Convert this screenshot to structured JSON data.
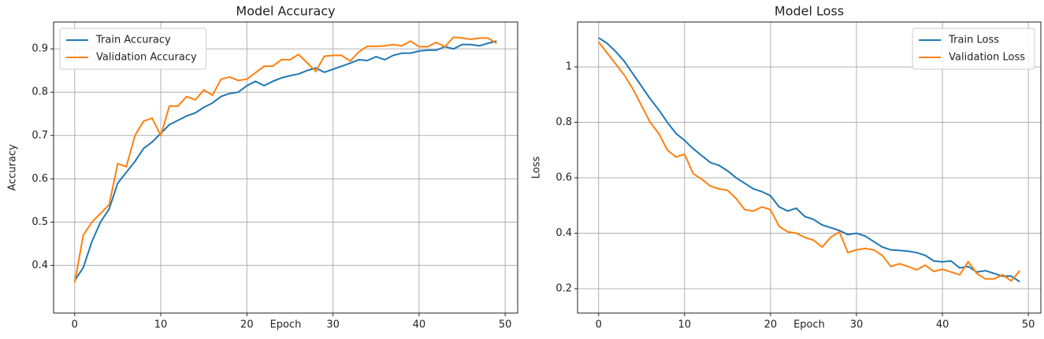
{
  "chart_data": [
    {
      "type": "line",
      "title": "Model Accuracy",
      "x_label": "Epoch",
      "y_label": "Accuracy",
      "x": [
        0,
        1,
        2,
        3,
        4,
        5,
        6,
        7,
        8,
        9,
        10,
        11,
        12,
        13,
        14,
        15,
        16,
        17,
        18,
        19,
        20,
        21,
        22,
        23,
        24,
        25,
        26,
        27,
        28,
        29,
        30,
        31,
        32,
        33,
        34,
        35,
        36,
        37,
        38,
        39,
        40,
        41,
        42,
        43,
        44,
        45,
        46,
        47,
        48,
        49
      ],
      "xlim": [
        -2.45,
        51.45
      ],
      "xticks": [
        0,
        10,
        20,
        30,
        40,
        50
      ],
      "ylim": [
        0.29,
        0.962
      ],
      "yticks": [
        0.4,
        0.5,
        0.6,
        0.7,
        0.8,
        0.9
      ],
      "grid": true,
      "legend": "upper left",
      "series": [
        {
          "name": "Train Accuracy",
          "color": "#1f77b4",
          "values": [
            0.365,
            0.395,
            0.455,
            0.5,
            0.53,
            0.59,
            0.615,
            0.64,
            0.67,
            0.685,
            0.705,
            0.725,
            0.735,
            0.745,
            0.752,
            0.765,
            0.775,
            0.79,
            0.797,
            0.8,
            0.815,
            0.825,
            0.815,
            0.825,
            0.833,
            0.838,
            0.842,
            0.85,
            0.856,
            0.846,
            0.853,
            0.86,
            0.867,
            0.875,
            0.873,
            0.882,
            0.875,
            0.885,
            0.89,
            0.89,
            0.895,
            0.897,
            0.897,
            0.905,
            0.9,
            0.91,
            0.91,
            0.907,
            0.913,
            0.918
          ]
        },
        {
          "name": "Validation Accuracy",
          "color": "#ff7f0e",
          "values": [
            0.36,
            0.47,
            0.5,
            0.52,
            0.54,
            0.635,
            0.628,
            0.7,
            0.733,
            0.74,
            0.7,
            0.768,
            0.768,
            0.79,
            0.782,
            0.805,
            0.793,
            0.83,
            0.835,
            0.827,
            0.83,
            0.845,
            0.86,
            0.86,
            0.875,
            0.875,
            0.887,
            0.868,
            0.848,
            0.883,
            0.885,
            0.885,
            0.872,
            0.893,
            0.906,
            0.906,
            0.907,
            0.91,
            0.907,
            0.918,
            0.905,
            0.905,
            0.915,
            0.905,
            0.927,
            0.925,
            0.922,
            0.925,
            0.925,
            0.913
          ]
        }
      ]
    },
    {
      "type": "line",
      "title": "Model Loss",
      "x_label": "Epoch",
      "y_label": "Loss",
      "x": [
        0,
        1,
        2,
        3,
        4,
        5,
        6,
        7,
        8,
        9,
        10,
        11,
        12,
        13,
        14,
        15,
        16,
        17,
        18,
        19,
        20,
        21,
        22,
        23,
        24,
        25,
        26,
        27,
        28,
        29,
        30,
        31,
        32,
        33,
        34,
        35,
        36,
        37,
        38,
        39,
        40,
        41,
        42,
        43,
        44,
        45,
        46,
        47,
        48,
        49
      ],
      "xlim": [
        -2.45,
        51.45
      ],
      "xticks": [
        0,
        10,
        20,
        30,
        40,
        50
      ],
      "ylim": [
        0.112,
        1.162
      ],
      "yticks": [
        0.2,
        0.4,
        0.6,
        0.8,
        1.0
      ],
      "grid": true,
      "legend": "upper right",
      "series": [
        {
          "name": "Train Loss",
          "color": "#1f77b4",
          "values": [
            1.105,
            1.085,
            1.055,
            1.02,
            0.975,
            0.93,
            0.885,
            0.845,
            0.8,
            0.76,
            0.735,
            0.705,
            0.68,
            0.655,
            0.645,
            0.625,
            0.6,
            0.58,
            0.56,
            0.55,
            0.535,
            0.495,
            0.48,
            0.49,
            0.46,
            0.45,
            0.43,
            0.42,
            0.41,
            0.395,
            0.4,
            0.39,
            0.37,
            0.35,
            0.34,
            0.338,
            0.335,
            0.33,
            0.32,
            0.3,
            0.297,
            0.3,
            0.275,
            0.28,
            0.26,
            0.265,
            0.255,
            0.245,
            0.245,
            0.225
          ]
        },
        {
          "name": "Validation Loss",
          "color": "#ff7f0e",
          "values": [
            1.09,
            1.05,
            1.01,
            0.97,
            0.92,
            0.86,
            0.8,
            0.76,
            0.7,
            0.675,
            0.685,
            0.615,
            0.595,
            0.57,
            0.56,
            0.555,
            0.525,
            0.485,
            0.48,
            0.495,
            0.485,
            0.425,
            0.405,
            0.4,
            0.385,
            0.375,
            0.35,
            0.385,
            0.405,
            0.33,
            0.34,
            0.345,
            0.34,
            0.32,
            0.28,
            0.29,
            0.28,
            0.268,
            0.285,
            0.262,
            0.27,
            0.26,
            0.25,
            0.297,
            0.255,
            0.235,
            0.235,
            0.25,
            0.228,
            0.265
          ]
        }
      ]
    }
  ]
}
